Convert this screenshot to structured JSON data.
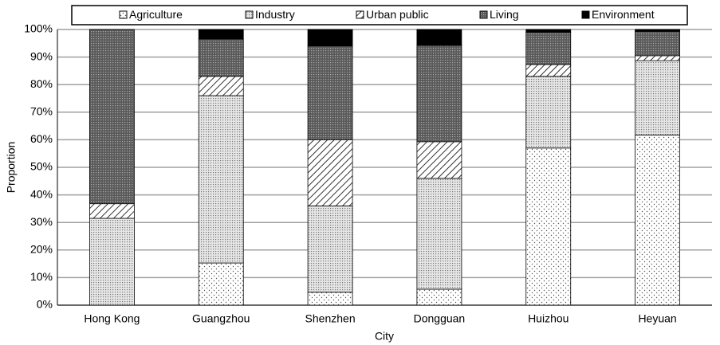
{
  "chart_data": {
    "type": "stacked-bar",
    "x_label": "City",
    "y_label": "Proportion",
    "categories": [
      "Hong Kong",
      "Guangzhou",
      "Shenzhen",
      "Dongguan",
      "Huizhou",
      "Heyuan"
    ],
    "series": [
      {
        "name": "Agriculture",
        "color": "#ffffff",
        "pattern": "sparse-dots",
        "values": [
          0,
          15.3,
          4.7,
          5.8,
          57,
          61.7
        ]
      },
      {
        "name": "Industry",
        "color": "#c8c8c8",
        "pattern": "dense-dots",
        "values": [
          31.5,
          60.7,
          31.3,
          40.2,
          26,
          27
        ]
      },
      {
        "name": "Urban public",
        "color": "#ffffff",
        "pattern": "diagonal",
        "values": [
          5.3,
          7,
          24,
          13.3,
          4.3,
          1.8
        ]
      },
      {
        "name": "Living",
        "color": "#6e6e6e",
        "pattern": "dark-dots",
        "values": [
          63.2,
          13.5,
          34,
          34.9,
          11.7,
          8.8
        ]
      },
      {
        "name": "Environment",
        "color": "#000000",
        "pattern": "solid",
        "values": [
          0,
          3.5,
          6,
          5.8,
          1,
          0.7
        ]
      }
    ],
    "ylim": [
      0,
      100
    ],
    "yticks": [
      {
        "value": 0,
        "label": "0%"
      },
      {
        "value": 10,
        "label": "10%"
      },
      {
        "value": 20,
        "label": "20%"
      },
      {
        "value": 30,
        "label": "30%"
      },
      {
        "value": 40,
        "label": "40%"
      },
      {
        "value": 50,
        "label": "50%"
      },
      {
        "value": 60,
        "label": "60%"
      },
      {
        "value": 70,
        "label": "70%"
      },
      {
        "value": 80,
        "label": "80%"
      },
      {
        "value": 90,
        "label": "90%"
      },
      {
        "value": 100,
        "label": "100%"
      }
    ],
    "grid": true,
    "legend": "top"
  }
}
